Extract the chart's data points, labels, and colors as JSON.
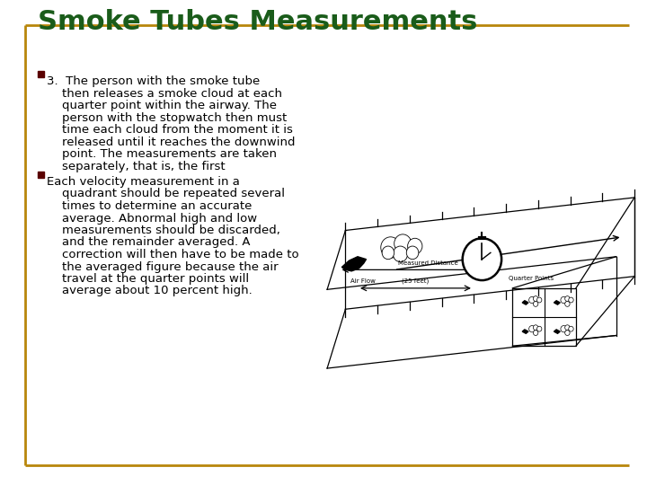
{
  "title": "Smoke Tubes Measurements",
  "title_color": "#1a5c1a",
  "title_fontsize": 22,
  "background_color": "#ffffff",
  "border_color": "#b8860b",
  "bullet_color": "#5a0000",
  "bullet1_line1": "3.  The person with the smoke tube",
  "bullet1_line2": "    then releases a smoke cloud at each",
  "bullet1_line3": "    quarter point within the airway. The",
  "bullet1_line4": "    person with the stopwatch then must",
  "bullet1_line5": "    time each cloud from the moment it is",
  "bullet1_line6": "    released until it reaches the downwind",
  "bullet1_line7": "    point. The measurements are taken",
  "bullet1_line8": "    separately, that is, the first",
  "bullet2_line1": "Each velocity measurement in a",
  "bullet2_line2": "    quadrant should be repeated several",
  "bullet2_line3": "    times to determine an accurate",
  "bullet2_line4": "    average. Abnormal high and low",
  "bullet2_line5": "    measurements should be discarded,",
  "bullet2_line6": "    and the remainder averaged. A",
  "bullet2_line7": "    correction will then have to be made to",
  "bullet2_line8": "    the averaged figure because the air",
  "bullet2_line9": "    travel at the quarter points will",
  "bullet2_line10": "    average about 10 percent high.",
  "text_fontsize": 9.5,
  "text_color": "#000000"
}
